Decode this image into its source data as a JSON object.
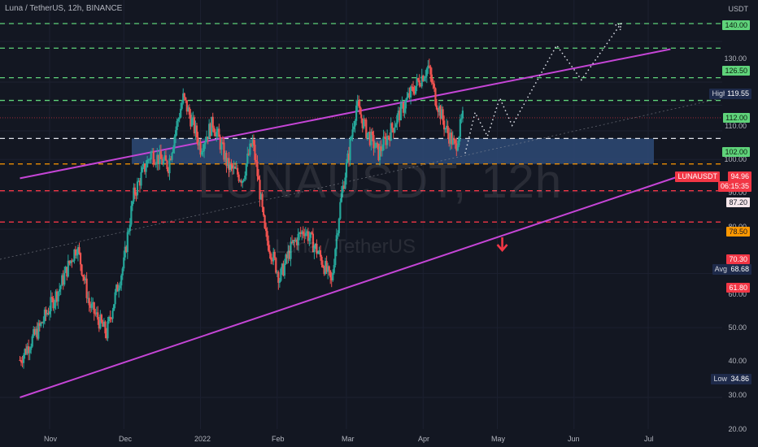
{
  "header": {
    "symbol_line": "Luna / TetherUS, 12h, BINANCE",
    "currency": "USDT"
  },
  "watermark": {
    "big": "LUNAUSDT, 12h",
    "small": "Luna / TetherUS"
  },
  "colors": {
    "background": "#131722",
    "up": "#26a69a",
    "down": "#ef5350",
    "channel": "#c545d6",
    "zone": "#2e4a75",
    "green_level": "#5fd37a",
    "red_level": "#f23645",
    "orange_level": "#ff9800",
    "white_level": "#e0e3eb"
  },
  "chart_data": {
    "type": "candlestick",
    "title": "Luna / TetherUS, 12h, BINANCE",
    "x_ticks": [
      "Nov",
      "Dec",
      "2022",
      "Feb",
      "Mar",
      "Apr",
      "May",
      "Jun",
      "Jul"
    ],
    "y_ticks": [
      20.0,
      30.0,
      40.0,
      50.0,
      60.0,
      70.0,
      80.0,
      90.0,
      100.0,
      110.0,
      130.0,
      140.0
    ],
    "price_path": [
      [
        "Oct 20",
        35
      ],
      [
        "Oct 28",
        40
      ],
      [
        "Nov 05",
        47
      ],
      [
        "Nov 12",
        56
      ],
      [
        "Nov 17",
        44
      ],
      [
        "Nov 24",
        39
      ],
      [
        "Dec 01",
        52
      ],
      [
        "Dec 05",
        69
      ],
      [
        "Dec 12",
        82
      ],
      [
        "Dec 19",
        78
      ],
      [
        "Dec 25",
        103
      ],
      [
        "Jan 01",
        84
      ],
      [
        "Jan 06",
        93
      ],
      [
        "Jan 12",
        78
      ],
      [
        "Jan 18",
        74
      ],
      [
        "Jan 22",
        86
      ],
      [
        "Jan 27",
        59
      ],
      [
        "Feb 02",
        49
      ],
      [
        "Feb 07",
        56
      ],
      [
        "Feb 12",
        60
      ],
      [
        "Feb 18",
        54
      ],
      [
        "Feb 23",
        48
      ],
      [
        "Feb 27",
        69
      ],
      [
        "Mar 02",
        82
      ],
      [
        "Mar 05",
        100
      ],
      [
        "Mar 09",
        90
      ],
      [
        "Mar 14",
        82
      ],
      [
        "Mar 20",
        92
      ],
      [
        "Mar 27",
        105
      ],
      [
        "Apr 03",
        117
      ],
      [
        "Apr 06",
        103
      ],
      [
        "Apr 10",
        91
      ],
      [
        "Apr 14",
        84
      ],
      [
        "Apr 17",
        94.96
      ]
    ],
    "last_price": {
      "symbol": "LUNAUSDT",
      "price": "94.96",
      "countdown": "06:15:35"
    },
    "levels": [
      {
        "label": "140.00",
        "value": 140,
        "color": "green"
      },
      {
        "label": "126.50",
        "value": 126.5,
        "color": "green"
      },
      {
        "label": "112.00",
        "value": 112,
        "color": "green"
      },
      {
        "label": "102.00",
        "value": 102,
        "color": "green"
      },
      {
        "label": "87.20",
        "value": 87.2,
        "color": "white"
      },
      {
        "label": "78.50",
        "value": 78.5,
        "color": "orange"
      },
      {
        "label": "70.30",
        "value": 70.3,
        "color": "red"
      },
      {
        "label": "61.80",
        "value": 61.8,
        "color": "red"
      }
    ],
    "stats": {
      "high_label": "High",
      "high": "119.55",
      "avg_label": "Avg",
      "avg": "68.68",
      "low_label": "Low",
      "low": "34.86"
    },
    "support_zone": {
      "from": 78.5,
      "to": 87.2
    },
    "channel": {
      "upper": [
        [
          "Oct 20",
          74
        ],
        [
          "Jul 10",
          126
        ]
      ],
      "lower": [
        [
          "Oct 20",
          30
        ],
        [
          "Jul 15",
          75
        ]
      ]
    },
    "projection": [
      [
        "Apr 18",
        82
      ],
      [
        "Apr 22",
        97
      ],
      [
        "Apr 27",
        88
      ],
      [
        "May 02",
        103
      ],
      [
        "May 07",
        92
      ],
      [
        "May 25",
        128
      ],
      [
        "Jun 04",
        111
      ],
      [
        "Jun 20",
        140
      ]
    ],
    "arrow": {
      "direction": "down",
      "date": "May 03"
    }
  }
}
